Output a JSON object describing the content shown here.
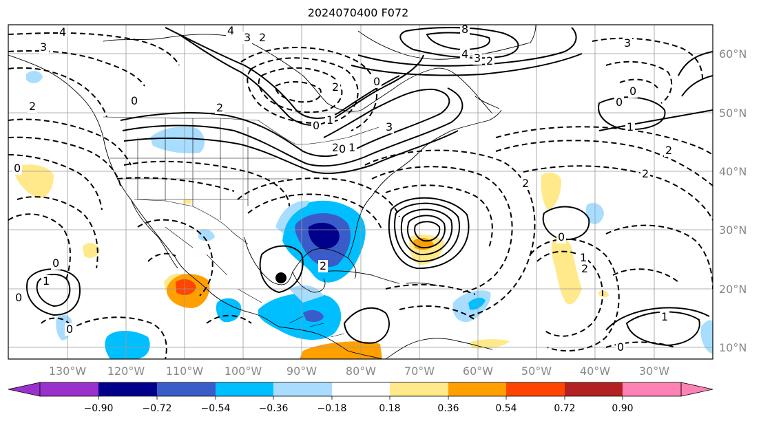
{
  "title": "2024070400 F072",
  "map": {
    "lon_labels": [
      "130°W",
      "120°W",
      "110°W",
      "100°W",
      "90°W",
      "80°W",
      "70°W",
      "60°W",
      "50°W",
      "40°W",
      "30°W"
    ],
    "lat_labels": [
      "60°N",
      "50°N",
      "40°N",
      "30°N",
      "20°N",
      "10°N"
    ]
  },
  "colorbar": {
    "ticks": [
      "−0.90",
      "−0.72",
      "−0.54",
      "−0.36",
      "−0.18",
      "0.18",
      "0.36",
      "0.54",
      "0.72",
      "0.90"
    ],
    "under_color": "#9932cc",
    "over_color": "#ff82b4",
    "colors": [
      "#9932cc",
      "#00008b",
      "#3a5cc8",
      "#00bfff",
      "#a8ddff",
      "#ffffff",
      "#ffe98a",
      "#ffa000",
      "#ff4500",
      "#b22222",
      "#ff82b4"
    ]
  },
  "contour_labels": [
    "4",
    "3",
    "8",
    "4",
    "3",
    "2",
    "4",
    "3",
    "2",
    "0",
    "2",
    "0",
    "0",
    "1",
    "2",
    "2",
    "0",
    "1",
    "3",
    "2",
    "0",
    "2",
    "2",
    "2",
    "3",
    "0",
    "0",
    "1",
    "2",
    "1",
    "0",
    "1",
    "0",
    "0",
    "0",
    "1",
    "2",
    "0"
  ]
}
